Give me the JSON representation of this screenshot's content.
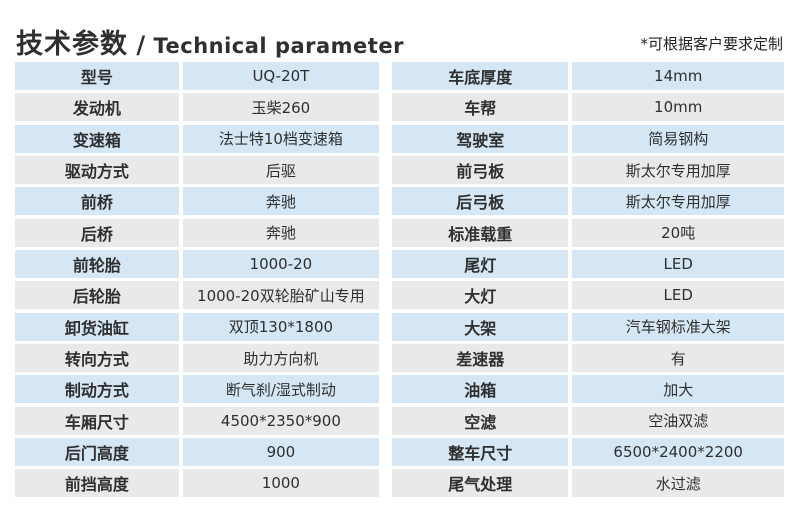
{
  "header": {
    "title_cn": "技术参数",
    "title_separator": " / ",
    "title_en": "Technical parameter",
    "note": "*可根据客户要求定制"
  },
  "colors": {
    "row_blue": "#d5e6f5",
    "row_gray": "#e9e9e9",
    "text": "#2f2f2f",
    "background": "#ffffff"
  },
  "left_table": {
    "rows": [
      {
        "label": "型号",
        "value": "UQ-20T"
      },
      {
        "label": "发动机",
        "value": "玉柴260"
      },
      {
        "label": "变速箱",
        "value": "法士特10档变速箱"
      },
      {
        "label": "驱动方式",
        "value": "后驱"
      },
      {
        "label": "前桥",
        "value": "奔驰"
      },
      {
        "label": "后桥",
        "value": "奔驰"
      },
      {
        "label": "前轮胎",
        "value": "1000-20"
      },
      {
        "label": "后轮胎",
        "value": "1000-20双轮胎矿山专用"
      },
      {
        "label": "卸货油缸",
        "value": "双顶130*1800"
      },
      {
        "label": "转向方式",
        "value": "助力方向机"
      },
      {
        "label": "制动方式",
        "value": "断气刹/湿式制动"
      },
      {
        "label": "车厢尺寸",
        "value": "4500*2350*900"
      },
      {
        "label": "后门高度",
        "value": "900"
      },
      {
        "label": "前挡高度",
        "value": "1000"
      }
    ]
  },
  "right_table": {
    "rows": [
      {
        "label": "车底厚度",
        "value": "14mm"
      },
      {
        "label": "车帮",
        "value": "10mm"
      },
      {
        "label": "驾驶室",
        "value": "简易钢构"
      },
      {
        "label": "前弓板",
        "value": "斯太尔专用加厚"
      },
      {
        "label": "后弓板",
        "value": "斯太尔专用加厚"
      },
      {
        "label": "标准载重",
        "value": "20吨"
      },
      {
        "label": "尾灯",
        "value": "LED"
      },
      {
        "label": "大灯",
        "value": "LED"
      },
      {
        "label": "大架",
        "value": "汽车钢标准大架"
      },
      {
        "label": "差速器",
        "value": "有"
      },
      {
        "label": "油箱",
        "value": "加大"
      },
      {
        "label": "空滤",
        "value": "空油双滤"
      },
      {
        "label": "整车尺寸",
        "value": "6500*2400*2200"
      },
      {
        "label": "尾气处理",
        "value": "水过滤"
      }
    ]
  }
}
